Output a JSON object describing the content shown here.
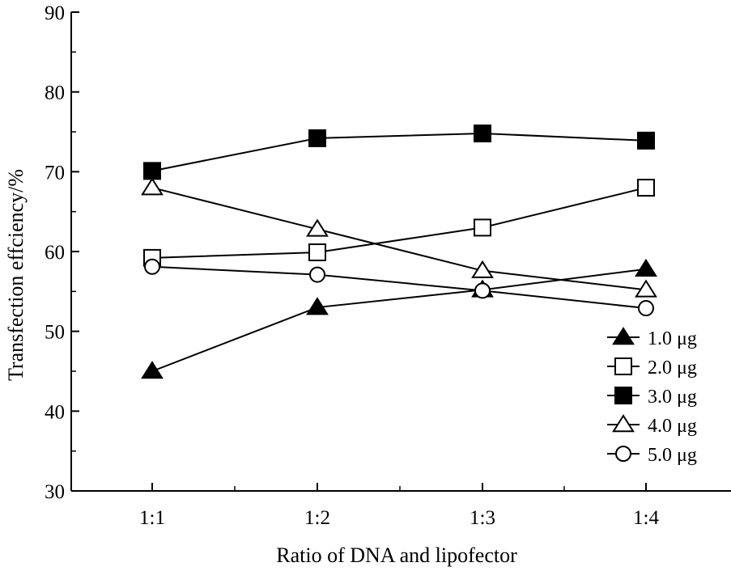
{
  "chart_data": {
    "type": "line",
    "xlabel": "Ratio of DNA and lipofector",
    "ylabel": "Transfection effciency/%",
    "categories": [
      "1:1",
      "1:2",
      "1:3",
      "1:4"
    ],
    "ylim": [
      30,
      90
    ],
    "yticks": [
      30,
      40,
      50,
      60,
      70,
      80,
      90
    ],
    "grid": false,
    "legend_position": "bottom-right",
    "series": [
      {
        "name": "1.0 μg",
        "marker": "triangle-filled",
        "values": [
          45,
          53,
          55.2,
          57.8
        ]
      },
      {
        "name": "2.0 μg",
        "marker": "square-open",
        "values": [
          59.2,
          59.9,
          63,
          68
        ]
      },
      {
        "name": "3.0 μg",
        "marker": "square-filled",
        "values": [
          70.1,
          74.2,
          74.8,
          73.9
        ]
      },
      {
        "name": "4.0 μg",
        "marker": "triangle-open",
        "values": [
          68,
          62.8,
          57.6,
          55.2
        ]
      },
      {
        "name": "5.0 μg",
        "marker": "circle-open",
        "values": [
          58.1,
          57.1,
          55.1,
          52.9
        ]
      }
    ]
  }
}
